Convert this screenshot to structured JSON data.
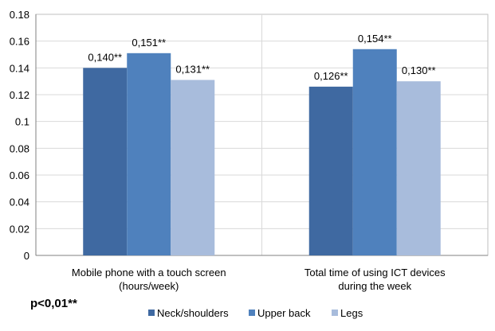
{
  "chart_data": {
    "type": "bar",
    "categories": [
      [
        "Mobile phone with a touch screen",
        "(hours/week)"
      ],
      [
        "Total time of using ICT devices",
        "during the week"
      ]
    ],
    "series": [
      {
        "name": "Neck/shoulders",
        "color": "#3f69a1",
        "values": [
          0.14,
          0.126
        ],
        "labels": [
          "0,140**",
          "0,126**"
        ]
      },
      {
        "name": "Upper back",
        "color": "#4f81bd",
        "values": [
          0.151,
          0.154
        ],
        "labels": [
          "0,151**",
          "0,154**"
        ]
      },
      {
        "name": "Legs",
        "color": "#a8bcdc",
        "values": [
          0.131,
          0.13
        ],
        "labels": [
          "0,131**",
          "0,130**"
        ]
      }
    ],
    "yticks": [
      "0",
      "0.02",
      "0.04",
      "0.06",
      "0.08",
      "0.1",
      "0.12",
      "0.14",
      "0.16",
      "0.18"
    ],
    "ylim": [
      0,
      0.18
    ],
    "grid": true,
    "legend": "bottom",
    "note": "p<0,01**"
  }
}
